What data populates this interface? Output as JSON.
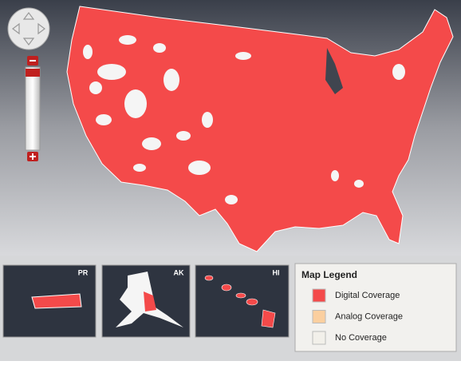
{
  "map": {
    "insets": [
      {
        "label": "PR"
      },
      {
        "label": "AK"
      },
      {
        "label": "HI"
      }
    ],
    "legend": {
      "title": "Map Legend",
      "items": [
        {
          "label": "Digital Coverage",
          "color": "#f44a4a"
        },
        {
          "label": "Analog Coverage",
          "color": "#fbcf9f"
        },
        {
          "label": "No Coverage",
          "color": "#f2f0ea"
        }
      ]
    }
  }
}
